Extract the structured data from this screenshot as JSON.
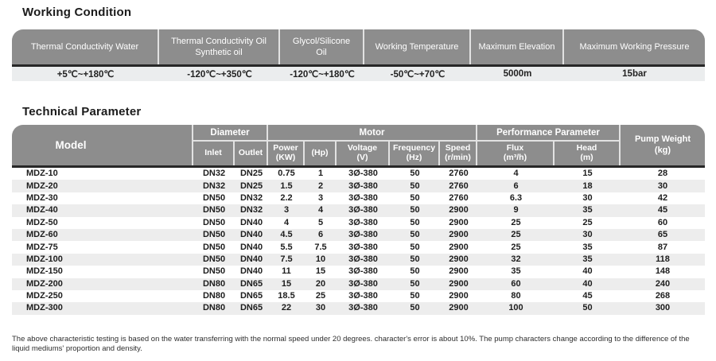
{
  "working_condition": {
    "title": "Working Condition",
    "columns": [
      {
        "label": "Thermal Conductivity Water",
        "value": "+5℃~+180℃"
      },
      {
        "label": "Thermal Conductivity Oil\nSynthetic oil",
        "value": "-120℃~+350℃"
      },
      {
        "label": "Glycol/Silicone Oil",
        "value": "-120℃~+180℃"
      },
      {
        "label": "Working Temperature",
        "value": "-50℃~+70℃"
      },
      {
        "label": "Maximum Elevation",
        "value": "5000m"
      },
      {
        "label": "Maximum Working Pressure",
        "value": "15bar"
      }
    ]
  },
  "technical_parameter": {
    "title": "Technical Parameter",
    "header": {
      "model": "Model",
      "groups": {
        "diameter": "Diameter",
        "motor": "Motor",
        "performance": "Performance Parameter"
      },
      "sub_columns": [
        "Inlet",
        "Outlet",
        "Power\n(KW)",
        "(Hp)",
        "Voltage\n(V)",
        "Frequency\n(Hz)",
        "Speed\n(r/min)",
        "Flux\n(m³/h)",
        "Head\n(m)"
      ],
      "pump_weight": "Pump Weight\n(kg)"
    },
    "rows": [
      [
        "MDZ-10",
        "DN32",
        "DN25",
        "0.75",
        "1",
        "3Ø-380",
        "50",
        "2760",
        "4",
        "15",
        "28"
      ],
      [
        "MDZ-20",
        "DN32",
        "DN25",
        "1.5",
        "2",
        "3Ø-380",
        "50",
        "2760",
        "6",
        "18",
        "30"
      ],
      [
        "MDZ-30",
        "DN50",
        "DN32",
        "2.2",
        "3",
        "3Ø-380",
        "50",
        "2760",
        "6.3",
        "30",
        "42"
      ],
      [
        "MDZ-40",
        "DN50",
        "DN32",
        "3",
        "4",
        "3Ø-380",
        "50",
        "2900",
        "9",
        "35",
        "45"
      ],
      [
        "MDZ-50",
        "DN50",
        "DN40",
        "4",
        "5",
        "3Ø-380",
        "50",
        "2900",
        "25",
        "25",
        "60"
      ],
      [
        "MDZ-60",
        "DN50",
        "DN40",
        "4.5",
        "6",
        "3Ø-380",
        "50",
        "2900",
        "25",
        "30",
        "65"
      ],
      [
        "MDZ-75",
        "DN50",
        "DN40",
        "5.5",
        "7.5",
        "3Ø-380",
        "50",
        "2900",
        "25",
        "35",
        "87"
      ],
      [
        "MDZ-100",
        "DN50",
        "DN40",
        "7.5",
        "10",
        "3Ø-380",
        "50",
        "2900",
        "32",
        "35",
        "118"
      ],
      [
        "MDZ-150",
        "DN50",
        "DN40",
        "11",
        "15",
        "3Ø-380",
        "50",
        "2900",
        "35",
        "40",
        "148"
      ],
      [
        "MDZ-200",
        "DN80",
        "DN65",
        "15",
        "20",
        "3Ø-380",
        "50",
        "2900",
        "60",
        "40",
        "240"
      ],
      [
        "MDZ-250",
        "DN80",
        "DN65",
        "18.5",
        "25",
        "3Ø-380",
        "50",
        "2900",
        "80",
        "45",
        "268"
      ],
      [
        "MDZ-300",
        "DN80",
        "DN65",
        "22",
        "30",
        "3Ø-380",
        "50",
        "2900",
        "100",
        "50",
        "300"
      ]
    ]
  },
  "footnote": "The above characteristic testing is based on the water transferring with the normal speed under 20 degrees.  character's error is about 10%. The pump characters change according to the difference of the liquid mediums'  proportion and density.",
  "colors": {
    "header_bg": "#8d8d8d",
    "stripe": "#ededed",
    "value_row_bg": "#ebedee",
    "rule": "#272727"
  }
}
